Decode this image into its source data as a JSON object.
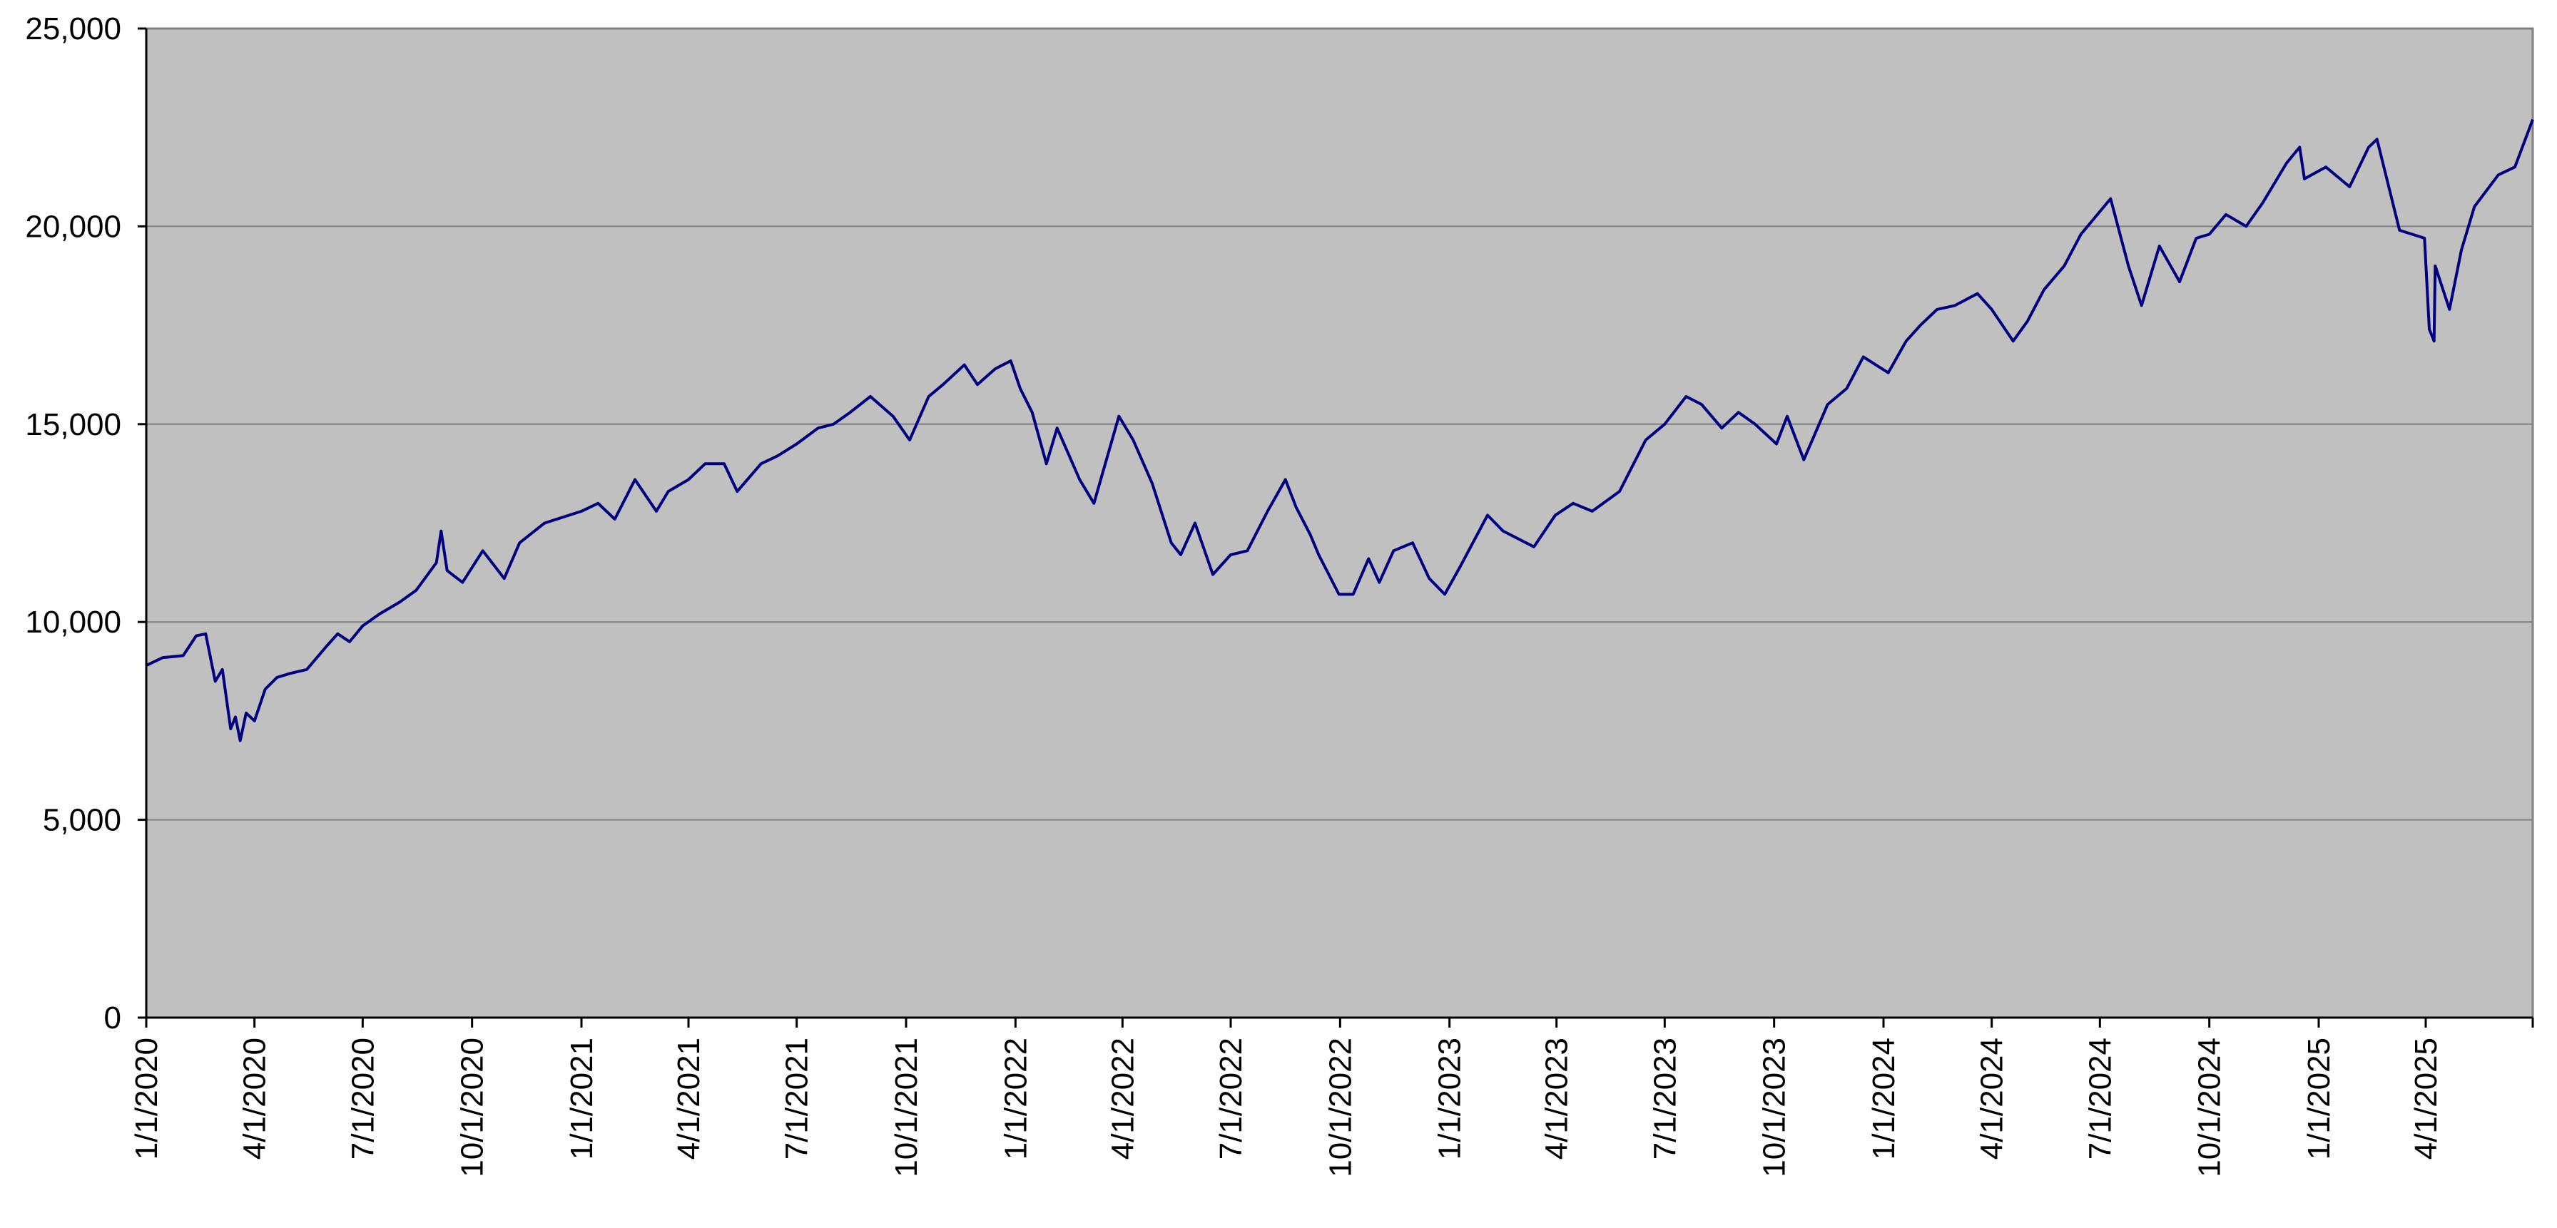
{
  "chart_data": {
    "type": "line",
    "title": "",
    "xlabel": "",
    "ylabel": "",
    "ylim": [
      0,
      25000
    ],
    "xlim": [
      "2020-01-01",
      "2025-06-30"
    ],
    "grid": true,
    "legend": "none",
    "y_ticks": [
      0,
      5000,
      10000,
      15000,
      20000,
      25000
    ],
    "y_tick_labels": [
      "0",
      "5,000",
      "10,000",
      "15,000",
      "20,000",
      "25,000"
    ],
    "x_ticks": [
      "2020-01-01",
      "2020-04-01",
      "2020-07-01",
      "2020-10-01",
      "2021-01-01",
      "2021-04-01",
      "2021-07-01",
      "2021-10-01",
      "2022-01-01",
      "2022-04-01",
      "2022-07-01",
      "2022-10-01",
      "2023-01-01",
      "2023-04-01",
      "2023-07-01",
      "2023-10-01",
      "2024-01-01",
      "2024-04-01",
      "2024-07-01",
      "2024-10-01",
      "2025-01-01",
      "2025-04-01"
    ],
    "x_tick_labels": [
      "1/1/2020",
      "4/1/2020",
      "7/1/2020",
      "10/1/2020",
      "1/1/2021",
      "4/1/2021",
      "7/1/2021",
      "10/1/2021",
      "1/1/2022",
      "4/1/2022",
      "7/1/2022",
      "10/1/2022",
      "1/1/2023",
      "4/1/2023",
      "7/1/2023",
      "10/1/2023",
      "1/1/2024",
      "4/1/2024",
      "7/1/2024",
      "10/1/2024",
      "1/1/2025",
      "4/1/2025"
    ],
    "series": [
      {
        "color": "#000080",
        "points": [
          [
            "2020-01-01",
            8900
          ],
          [
            "2020-01-15",
            9100
          ],
          [
            "2020-02-01",
            9150
          ],
          [
            "2020-02-12",
            9650
          ],
          [
            "2020-02-20",
            9700
          ],
          [
            "2020-02-28",
            8500
          ],
          [
            "2020-03-05",
            8800
          ],
          [
            "2020-03-12",
            7300
          ],
          [
            "2020-03-16",
            7600
          ],
          [
            "2020-03-20",
            7000
          ],
          [
            "2020-03-25",
            7700
          ],
          [
            "2020-04-01",
            7500
          ],
          [
            "2020-04-10",
            8300
          ],
          [
            "2020-04-20",
            8600
          ],
          [
            "2020-05-01",
            8700
          ],
          [
            "2020-05-15",
            8800
          ],
          [
            "2020-06-01",
            9400
          ],
          [
            "2020-06-10",
            9700
          ],
          [
            "2020-06-20",
            9500
          ],
          [
            "2020-07-01",
            9900
          ],
          [
            "2020-07-15",
            10200
          ],
          [
            "2020-08-01",
            10500
          ],
          [
            "2020-08-15",
            10800
          ],
          [
            "2020-09-01",
            11500
          ],
          [
            "2020-09-05",
            12300
          ],
          [
            "2020-09-10",
            11300
          ],
          [
            "2020-09-23",
            11000
          ],
          [
            "2020-10-10",
            11800
          ],
          [
            "2020-10-28",
            11100
          ],
          [
            "2020-11-10",
            12000
          ],
          [
            "2020-12-01",
            12500
          ],
          [
            "2021-01-01",
            12800
          ],
          [
            "2021-01-15",
            13000
          ],
          [
            "2021-01-29",
            12600
          ],
          [
            "2021-02-15",
            13600
          ],
          [
            "2021-03-05",
            12800
          ],
          [
            "2021-03-15",
            13300
          ],
          [
            "2021-04-01",
            13600
          ],
          [
            "2021-04-15",
            14000
          ],
          [
            "2021-05-01",
            14000
          ],
          [
            "2021-05-12",
            13300
          ],
          [
            "2021-06-01",
            14000
          ],
          [
            "2021-06-15",
            14200
          ],
          [
            "2021-07-01",
            14500
          ],
          [
            "2021-07-19",
            14900
          ],
          [
            "2021-08-01",
            15000
          ],
          [
            "2021-08-15",
            15300
          ],
          [
            "2021-09-01",
            15700
          ],
          [
            "2021-09-20",
            15200
          ],
          [
            "2021-10-04",
            14600
          ],
          [
            "2021-10-20",
            15700
          ],
          [
            "2021-11-01",
            16000
          ],
          [
            "2021-11-19",
            16500
          ],
          [
            "2021-11-30",
            16000
          ],
          [
            "2021-12-15",
            16400
          ],
          [
            "2021-12-28",
            16600
          ],
          [
            "2022-01-05",
            15900
          ],
          [
            "2022-01-15",
            15300
          ],
          [
            "2022-01-27",
            14000
          ],
          [
            "2022-02-05",
            14900
          ],
          [
            "2022-02-24",
            13600
          ],
          [
            "2022-03-08",
            13000
          ],
          [
            "2022-03-29",
            15200
          ],
          [
            "2022-04-10",
            14600
          ],
          [
            "2022-04-26",
            13500
          ],
          [
            "2022-05-12",
            12000
          ],
          [
            "2022-05-20",
            11700
          ],
          [
            "2022-06-01",
            12500
          ],
          [
            "2022-06-16",
            11200
          ],
          [
            "2022-07-01",
            11700
          ],
          [
            "2022-07-15",
            11800
          ],
          [
            "2022-08-01",
            12800
          ],
          [
            "2022-08-16",
            13600
          ],
          [
            "2022-08-25",
            12900
          ],
          [
            "2022-09-06",
            12200
          ],
          [
            "2022-09-13",
            11700
          ],
          [
            "2022-09-30",
            10700
          ],
          [
            "2022-10-12",
            10700
          ],
          [
            "2022-10-25",
            11600
          ],
          [
            "2022-11-03",
            11000
          ],
          [
            "2022-11-15",
            11800
          ],
          [
            "2022-12-01",
            12000
          ],
          [
            "2022-12-15",
            11100
          ],
          [
            "2022-12-28",
            10700
          ],
          [
            "2023-01-10",
            11400
          ],
          [
            "2023-02-02",
            12700
          ],
          [
            "2023-02-15",
            12300
          ],
          [
            "2023-03-13",
            11900
          ],
          [
            "2023-03-31",
            12700
          ],
          [
            "2023-04-15",
            13000
          ],
          [
            "2023-05-01",
            12800
          ],
          [
            "2023-05-24",
            13300
          ],
          [
            "2023-06-15",
            14600
          ],
          [
            "2023-07-01",
            15000
          ],
          [
            "2023-07-19",
            15700
          ],
          [
            "2023-08-01",
            15500
          ],
          [
            "2023-08-18",
            14900
          ],
          [
            "2023-09-01",
            15300
          ],
          [
            "2023-09-15",
            15000
          ],
          [
            "2023-10-03",
            14500
          ],
          [
            "2023-10-12",
            15200
          ],
          [
            "2023-10-26",
            14100
          ],
          [
            "2023-11-15",
            15500
          ],
          [
            "2023-12-01",
            15900
          ],
          [
            "2023-12-15",
            16700
          ],
          [
            "2024-01-05",
            16300
          ],
          [
            "2024-01-20",
            17100
          ],
          [
            "2024-02-01",
            17500
          ],
          [
            "2024-02-15",
            17900
          ],
          [
            "2024-03-01",
            18000
          ],
          [
            "2024-03-20",
            18300
          ],
          [
            "2024-04-01",
            17900
          ],
          [
            "2024-04-19",
            17100
          ],
          [
            "2024-05-01",
            17600
          ],
          [
            "2024-05-15",
            18400
          ],
          [
            "2024-06-01",
            19000
          ],
          [
            "2024-06-15",
            19800
          ],
          [
            "2024-07-10",
            20700
          ],
          [
            "2024-07-25",
            19000
          ],
          [
            "2024-08-05",
            18000
          ],
          [
            "2024-08-20",
            19500
          ],
          [
            "2024-09-06",
            18600
          ],
          [
            "2024-09-20",
            19700
          ],
          [
            "2024-10-01",
            19800
          ],
          [
            "2024-10-15",
            20300
          ],
          [
            "2024-11-01",
            20000
          ],
          [
            "2024-11-15",
            20600
          ],
          [
            "2024-12-05",
            21600
          ],
          [
            "2024-12-16",
            22000
          ],
          [
            "2024-12-20",
            21200
          ],
          [
            "2025-01-07",
            21500
          ],
          [
            "2025-01-27",
            21000
          ],
          [
            "2025-02-12",
            22000
          ],
          [
            "2025-02-19",
            22200
          ],
          [
            "2025-03-10",
            19900
          ],
          [
            "2025-03-31",
            19700
          ],
          [
            "2025-04-04",
            17400
          ],
          [
            "2025-04-08",
            17100
          ],
          [
            "2025-04-09",
            19000
          ],
          [
            "2025-04-21",
            17900
          ],
          [
            "2025-05-01",
            19400
          ],
          [
            "2025-05-12",
            20500
          ],
          [
            "2025-06-01",
            21300
          ],
          [
            "2025-06-15",
            21500
          ],
          [
            "2025-06-30",
            22700
          ]
        ]
      }
    ]
  }
}
